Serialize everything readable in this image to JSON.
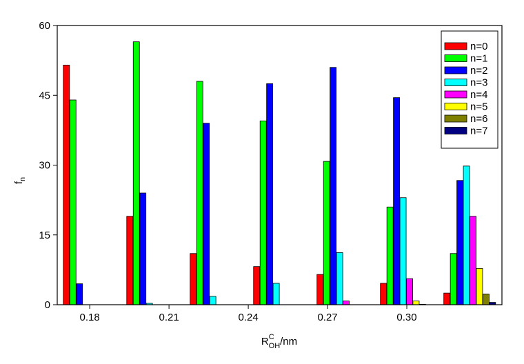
{
  "chart_data": {
    "type": "bar",
    "x_label": {
      "main": "R",
      "sup": "C",
      "sub": "OH",
      "unit": "/nm"
    },
    "y_label": {
      "main": "f",
      "sub": "n"
    },
    "x": [
      0.17,
      0.194,
      0.218,
      0.242,
      0.266,
      0.29,
      0.314
    ],
    "xlim": [
      0.1677,
      0.336
    ],
    "xticks": [
      0.18,
      0.21,
      0.24,
      0.27,
      {
        "value": 0.3,
        "label": "0.30"
      }
    ],
    "ylim": [
      0,
      60
    ],
    "yticks": [
      0,
      15,
      30,
      45,
      60
    ],
    "legend": "upper right",
    "series": [
      {
        "name": "n=0",
        "color": "#ff0000",
        "values": [
          51.5,
          19,
          11,
          8.2,
          6.5,
          4.6,
          2.5
        ]
      },
      {
        "name": "n=1",
        "color": "#00ff00",
        "values": [
          44,
          56.5,
          48,
          39.5,
          30.8,
          21,
          11
        ]
      },
      {
        "name": "n=2",
        "color": "#0000ff",
        "values": [
          4.5,
          24,
          39,
          47.5,
          51,
          44.5,
          26.7
        ]
      },
      {
        "name": "n=3",
        "color": "#00ffff",
        "values": [
          0,
          0.3,
          1.8,
          4.6,
          11.2,
          23,
          29.8
        ]
      },
      {
        "name": "n=4",
        "color": "#ff00ff",
        "values": [
          0,
          0,
          0,
          0,
          0.8,
          5.6,
          19
        ]
      },
      {
        "name": "n=5",
        "color": "#ffff00",
        "values": [
          0,
          0,
          0,
          0,
          0,
          0.8,
          7.8
        ]
      },
      {
        "name": "n=6",
        "color": "#808000",
        "values": [
          0,
          0,
          0,
          0,
          0,
          0.1,
          2.3
        ]
      },
      {
        "name": "n=7",
        "color": "#000080",
        "values": [
          0,
          0,
          0,
          0,
          0,
          0,
          0.5
        ]
      }
    ]
  }
}
